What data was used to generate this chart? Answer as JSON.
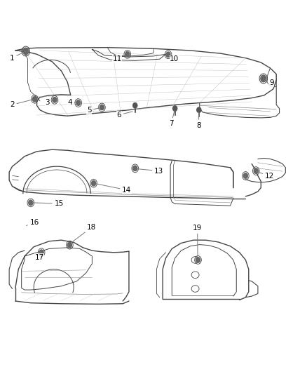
{
  "background_color": "#ffffff",
  "line_color": "#444444",
  "text_color": "#000000",
  "leader_color": "#777777",
  "fig_width": 4.38,
  "fig_height": 5.33,
  "dpi": 100,
  "callouts": {
    "1": {
      "lbl": [
        0.04,
        0.845
      ],
      "pt": [
        0.085,
        0.862
      ]
    },
    "2": {
      "lbl": [
        0.04,
        0.72
      ],
      "pt": [
        0.11,
        0.737
      ]
    },
    "3": {
      "lbl": [
        0.155,
        0.72
      ],
      "pt": [
        0.175,
        0.733
      ]
    },
    "4": {
      "lbl": [
        0.225,
        0.72
      ],
      "pt": [
        0.255,
        0.727
      ]
    },
    "5": {
      "lbl": [
        0.29,
        0.7
      ],
      "pt": [
        0.33,
        0.71
      ]
    },
    "6": {
      "lbl": [
        0.39,
        0.688
      ],
      "pt": [
        0.44,
        0.7
      ]
    },
    "7": {
      "lbl": [
        0.56,
        0.665
      ],
      "pt": [
        0.57,
        0.69
      ]
    },
    "8": {
      "lbl": [
        0.65,
        0.66
      ],
      "pt": [
        0.648,
        0.685
      ]
    },
    "9": {
      "lbl": [
        0.885,
        0.778
      ],
      "pt": [
        0.86,
        0.79
      ]
    },
    "10": {
      "lbl": [
        0.57,
        0.845
      ],
      "pt": [
        0.55,
        0.855
      ]
    },
    "11": {
      "lbl": [
        0.385,
        0.848
      ],
      "pt": [
        0.415,
        0.855
      ]
    },
    "12": {
      "lbl": [
        0.88,
        0.53
      ],
      "pt": [
        0.835,
        0.543
      ]
    },
    "13": {
      "lbl": [
        0.52,
        0.54
      ],
      "pt": [
        0.44,
        0.548
      ]
    },
    "14": {
      "lbl": [
        0.415,
        0.49
      ],
      "pt": [
        0.31,
        0.51
      ]
    },
    "15": {
      "lbl": [
        0.195,
        0.455
      ],
      "pt": [
        0.1,
        0.458
      ]
    },
    "16": {
      "lbl": [
        0.12,
        0.405
      ],
      "pt": [
        0.085,
        0.39
      ]
    },
    "17": {
      "lbl": [
        0.13,
        0.31
      ],
      "pt": [
        0.135,
        0.33
      ]
    },
    "18": {
      "lbl": [
        0.3,
        0.388
      ],
      "pt": [
        0.23,
        0.352
      ]
    },
    "19": {
      "lbl": [
        0.645,
        0.393
      ],
      "pt": [
        0.645,
        0.31
      ]
    }
  }
}
